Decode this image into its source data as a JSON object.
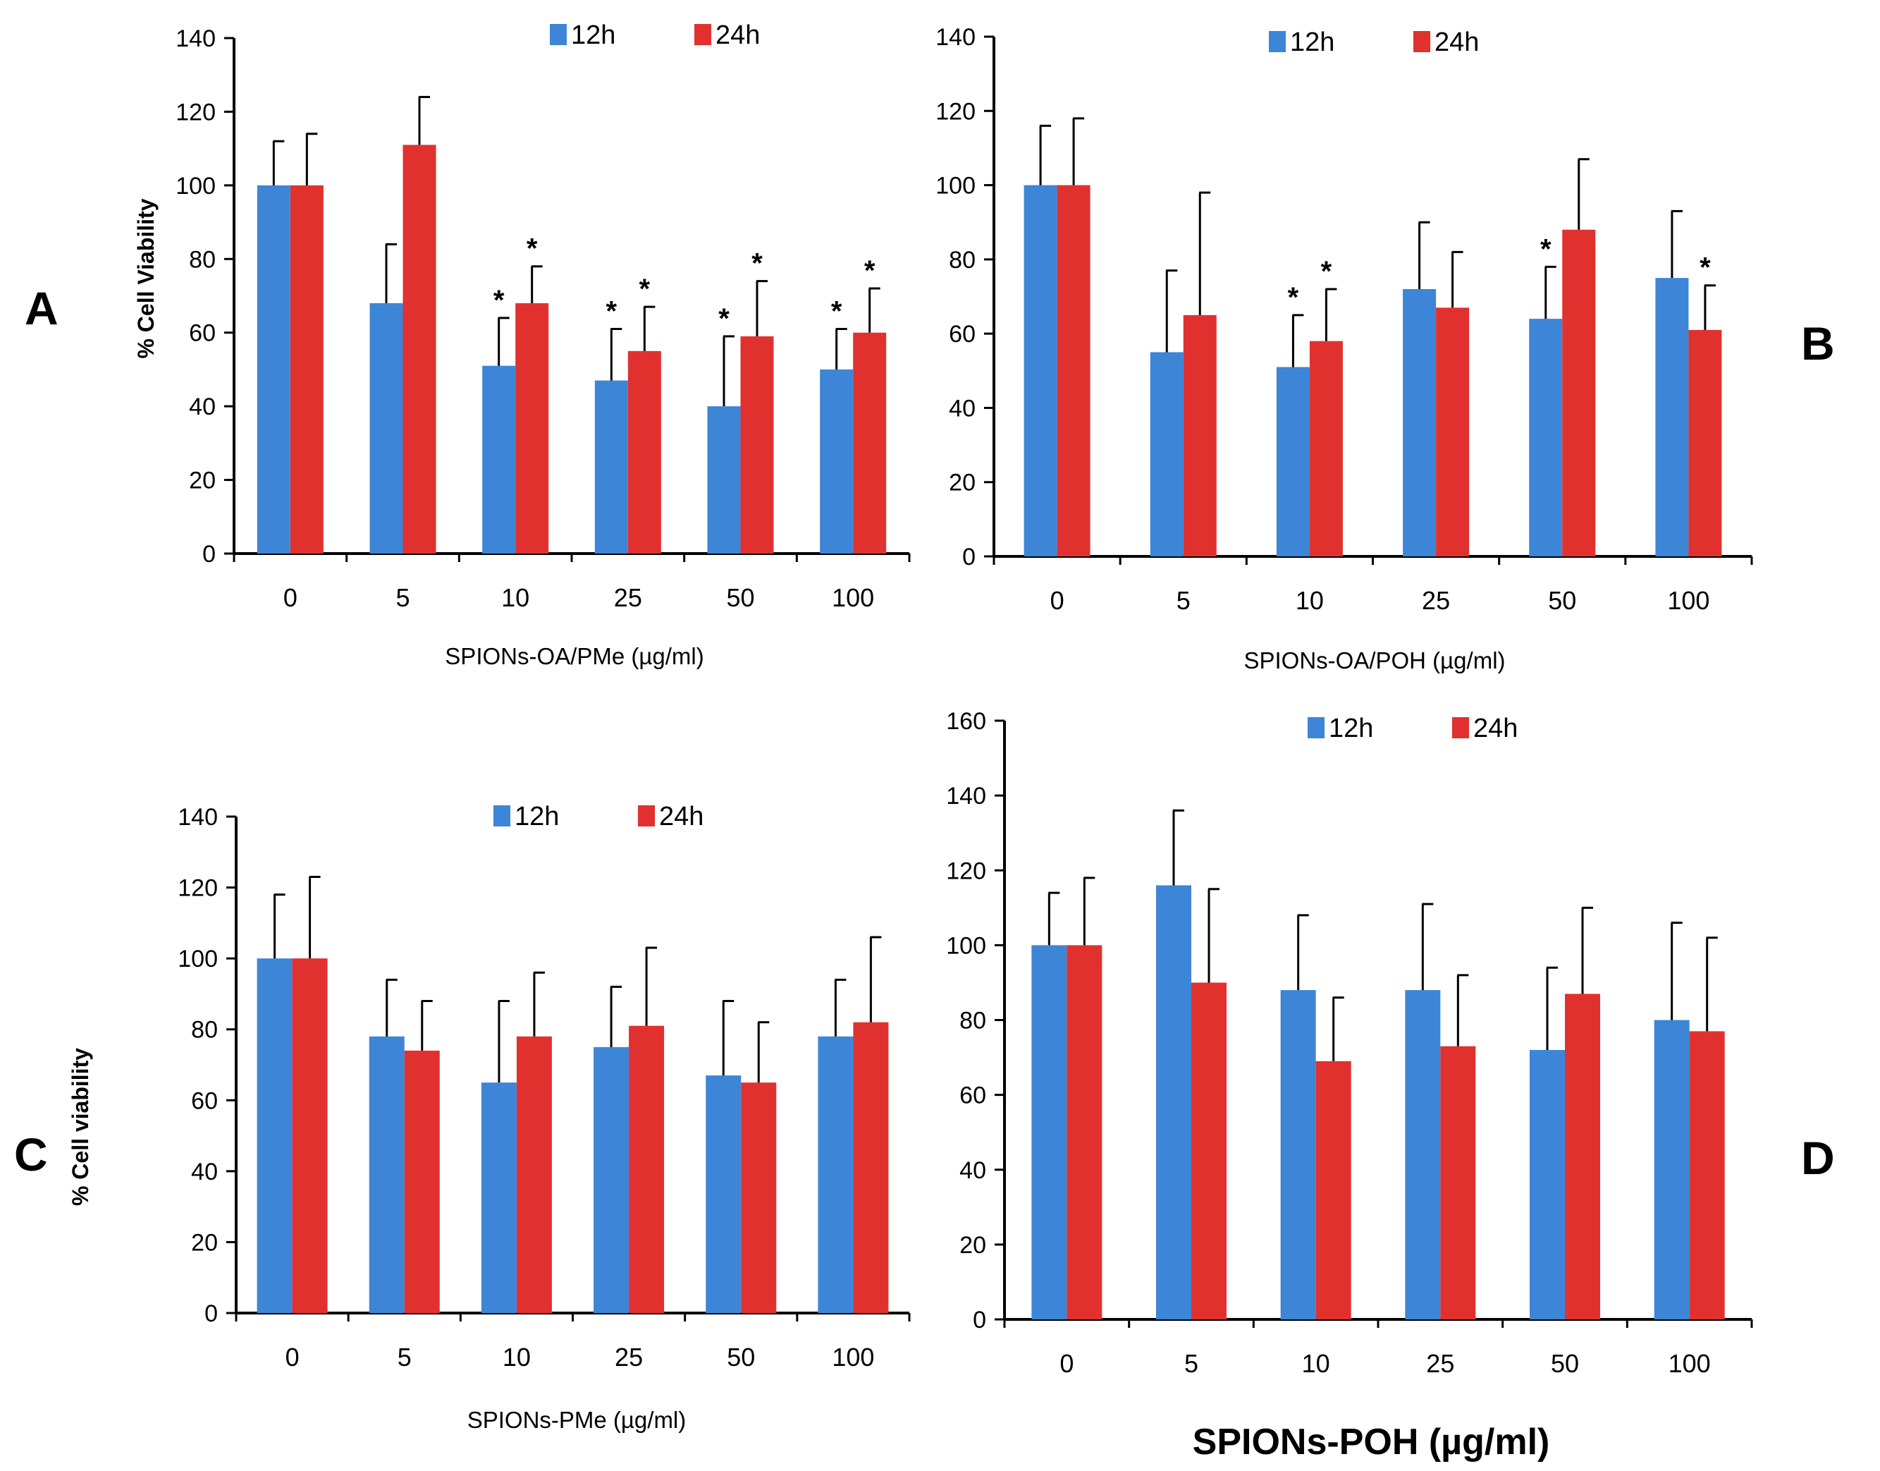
{
  "colors": {
    "series_12h": "#3d85d6",
    "series_24h": "#e1312f"
  },
  "chart_data": [
    {
      "type": "bar",
      "panel": "A",
      "ylabel": "% Cell Viability",
      "xlabel": "SPIONs-OA/PMe (µg/ml)",
      "ylim": [
        0,
        140
      ],
      "yticks": [
        "0",
        "20",
        "40",
        "60",
        "80",
        "100",
        "120",
        "140"
      ],
      "categories": [
        "0",
        "5",
        "10",
        "25",
        "50",
        "100"
      ],
      "series": [
        {
          "name": "12h",
          "values": [
            100,
            68,
            51,
            47,
            40,
            50
          ],
          "errors": [
            12,
            16,
            13,
            14,
            19,
            11
          ]
        },
        {
          "name": "24h",
          "values": [
            100,
            111,
            68,
            55,
            59,
            60
          ],
          "errors": [
            14,
            13,
            10,
            12,
            15,
            12
          ]
        }
      ],
      "significance": [
        {
          "category_index": 2,
          "series": 0,
          "label": "*"
        },
        {
          "category_index": 2,
          "series": 1,
          "label": "*"
        },
        {
          "category_index": 3,
          "series": 0,
          "label": "*"
        },
        {
          "category_index": 3,
          "series": 1,
          "label": "*"
        },
        {
          "category_index": 4,
          "series": 0,
          "label": "*"
        },
        {
          "category_index": 4,
          "series": 1,
          "label": "*"
        },
        {
          "category_index": 5,
          "series": 0,
          "label": "*"
        },
        {
          "category_index": 5,
          "series": 1,
          "label": "*"
        }
      ]
    },
    {
      "type": "bar",
      "panel": "B",
      "ylabel": "",
      "xlabel": "SPIONs-OA/POH (µg/ml)",
      "ylim": [
        0,
        140
      ],
      "yticks": [
        "0",
        "20",
        "40",
        "60",
        "80",
        "100",
        "120",
        "140"
      ],
      "categories": [
        "0",
        "5",
        "10",
        "25",
        "50",
        "100"
      ],
      "series": [
        {
          "name": "12h",
          "values": [
            100,
            55,
            51,
            72,
            64,
            75
          ],
          "errors": [
            16,
            22,
            14,
            18,
            14,
            18
          ]
        },
        {
          "name": "24h",
          "values": [
            100,
            65,
            58,
            67,
            88,
            61
          ],
          "errors": [
            18,
            33,
            14,
            15,
            19,
            12
          ]
        }
      ],
      "significance": [
        {
          "category_index": 2,
          "series": 0,
          "label": "*"
        },
        {
          "category_index": 2,
          "series": 1,
          "label": "*"
        },
        {
          "category_index": 4,
          "series": 0,
          "label": "*"
        },
        {
          "category_index": 5,
          "series": 1,
          "label": "*"
        }
      ]
    },
    {
      "type": "bar",
      "panel": "C",
      "ylabel": "% Cell viability",
      "xlabel": "SPIONs-PMe (µg/ml)",
      "ylim": [
        0,
        140
      ],
      "yticks": [
        "0",
        "20",
        "40",
        "60",
        "80",
        "100",
        "120",
        "140"
      ],
      "categories": [
        "0",
        "5",
        "10",
        "25",
        "50",
        "100"
      ],
      "series": [
        {
          "name": "12h",
          "values": [
            100,
            78,
            65,
            75,
            67,
            78
          ],
          "errors": [
            18,
            16,
            23,
            17,
            21,
            16
          ]
        },
        {
          "name": "24h",
          "values": [
            100,
            74,
            78,
            81,
            65,
            82
          ],
          "errors": [
            23,
            14,
            18,
            22,
            17,
            24
          ]
        }
      ],
      "significance": []
    },
    {
      "type": "bar",
      "panel": "D",
      "ylabel": "",
      "xlabel": "SPIONs-POH (µg/ml)",
      "ylim": [
        0,
        160
      ],
      "yticks": [
        "0",
        "20",
        "40",
        "60",
        "80",
        "100",
        "120",
        "140",
        "160"
      ],
      "categories": [
        "0",
        "5",
        "10",
        "25",
        "50",
        "100"
      ],
      "series": [
        {
          "name": "12h",
          "values": [
            100,
            116,
            88,
            88,
            72,
            80
          ],
          "errors": [
            14,
            20,
            20,
            23,
            22,
            26
          ]
        },
        {
          "name": "24h",
          "values": [
            100,
            90,
            69,
            73,
            87,
            77
          ],
          "errors": [
            18,
            25,
            17,
            19,
            23,
            25
          ]
        }
      ],
      "significance": []
    }
  ]
}
